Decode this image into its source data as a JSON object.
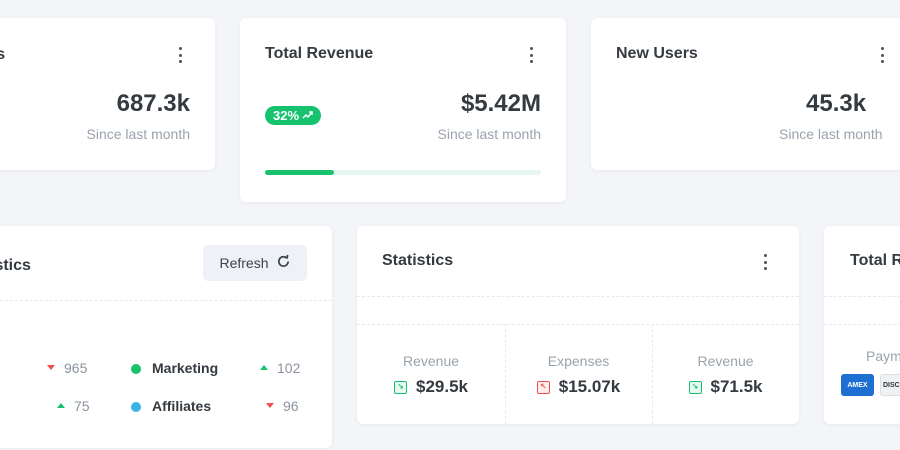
{
  "cards": {
    "users": {
      "title": "rs",
      "value": "687.3k",
      "sub": "Since last month"
    },
    "revenue": {
      "title": "Total Revenue",
      "badge": "32%",
      "value": "$5.42M",
      "sub": "Since last month",
      "progress": 0.25
    },
    "new_users": {
      "title": "New Users",
      "value": "45.3k",
      "sub": "Since last month"
    }
  },
  "traffic": {
    "title": "istics",
    "refresh_label": "Refresh",
    "rows": [
      {
        "left_value": "965",
        "left_trend": "down",
        "label": "Marketing",
        "color": "#16c26e",
        "value": "102",
        "trend": "up"
      },
      {
        "left_value": "75",
        "left_trend": "up",
        "label": "Affiliates",
        "color": "#3ab4e5",
        "value": "96",
        "trend": "down"
      }
    ]
  },
  "statistics": {
    "title": "Statistics",
    "cols": [
      {
        "label": "Revenue",
        "value": "$29.5k",
        "icon": "trend-up-square-icon",
        "tone": "green"
      },
      {
        "label": "Expenses",
        "value": "$15.07k",
        "icon": "trend-down-square-icon",
        "tone": "red"
      },
      {
        "label": "Revenue",
        "value": "$71.5k",
        "icon": "trend-up-square-icon",
        "tone": "green"
      }
    ]
  },
  "total_right": {
    "title": "Total R",
    "pay_label": "Paym",
    "cards": [
      "AMEX",
      "DISCO"
    ]
  },
  "colors": {
    "accent_green": "#16c26e",
    "down_red": "#f0504d",
    "affiliates_blue": "#3ab4e5"
  }
}
